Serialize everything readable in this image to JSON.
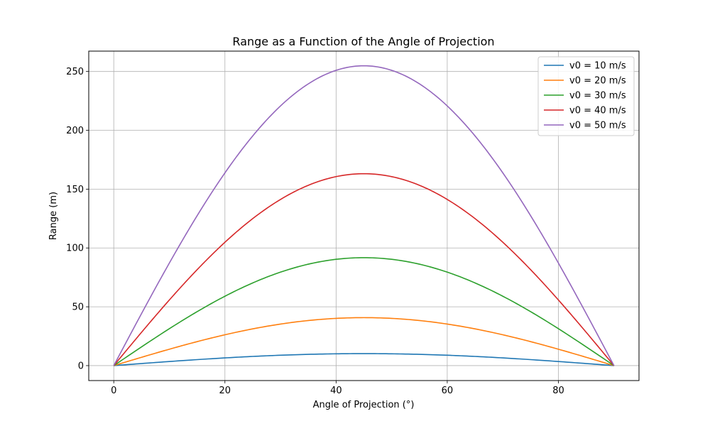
{
  "chart_data": {
    "type": "line",
    "title": "Range as a Function of the Angle of Projection",
    "xlabel": "Angle of Projection (°)",
    "ylabel": "Range (m)",
    "xlim": [
      -4.5,
      94.5
    ],
    "ylim": [
      -12.7,
      267.3
    ],
    "xticks": [
      0,
      20,
      40,
      60,
      80
    ],
    "yticks": [
      0,
      50,
      100,
      150,
      200,
      250
    ],
    "grid": true,
    "legend_position": "top-right",
    "angle_range": [
      0,
      90
    ],
    "gravity": 9.81,
    "series": [
      {
        "name": "v0 = 10 m/s",
        "v0": 10,
        "color": "#1f77b4"
      },
      {
        "name": "v0 = 20 m/s",
        "v0": 20,
        "color": "#ff7f0e"
      },
      {
        "name": "v0 = 30 m/s",
        "v0": 30,
        "color": "#2ca02c"
      },
      {
        "name": "v0 = 40 m/s",
        "v0": 40,
        "color": "#d62728"
      },
      {
        "name": "v0 = 50 m/s",
        "v0": 50,
        "color": "#9467bd"
      }
    ]
  }
}
